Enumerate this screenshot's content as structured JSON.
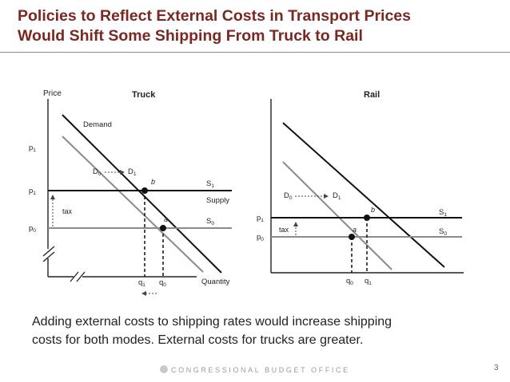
{
  "slide": {
    "title_line1": "Policies to Reflect External Costs in Transport Prices",
    "title_line2": "Would Shift Some Shipping From Truck to Rail",
    "caption_line1": "Adding external costs to shipping rates would increase shipping",
    "caption_line2": "costs for both modes. External costs for trucks are greater.",
    "footer": "CONGRESSIONAL BUDGET OFFICE",
    "page_number": "3",
    "accent_color": "#7a2822"
  },
  "truck": {
    "title": "Truck",
    "y_label": "Price",
    "x_label": "Quantity",
    "demand_label": "Demand",
    "d0": "D",
    "d0_sub": "0",
    "d1": "D",
    "d1_sub": "1",
    "s1": "S",
    "s1_sub": "1",
    "s0": "S",
    "s0_sub": "0",
    "supply_label": "Supply",
    "tax_label": "tax",
    "point_b": "b",
    "point_a": "a",
    "p_top": "p",
    "p_top_sub": "1",
    "p1": "p",
    "p1_sub": "1",
    "p0": "p",
    "p0_sub": "0",
    "q1": "q",
    "q1_sub": "1",
    "q0": "q",
    "q0_sub": "0"
  },
  "rail": {
    "title": "Rail",
    "d0": "D",
    "d0_sub": "0",
    "d1": "D",
    "d1_sub": "1",
    "s1": "S",
    "s1_sub": "1",
    "s0": "S",
    "s0_sub": "0",
    "tax_label": "tax",
    "point_b": "b",
    "point_a": "a",
    "p1": "p",
    "p1_sub": "1",
    "p0": "p",
    "p0_sub": "0",
    "q0": "q",
    "q0_sub": "0",
    "q1": "q",
    "q1_sub": "1"
  }
}
